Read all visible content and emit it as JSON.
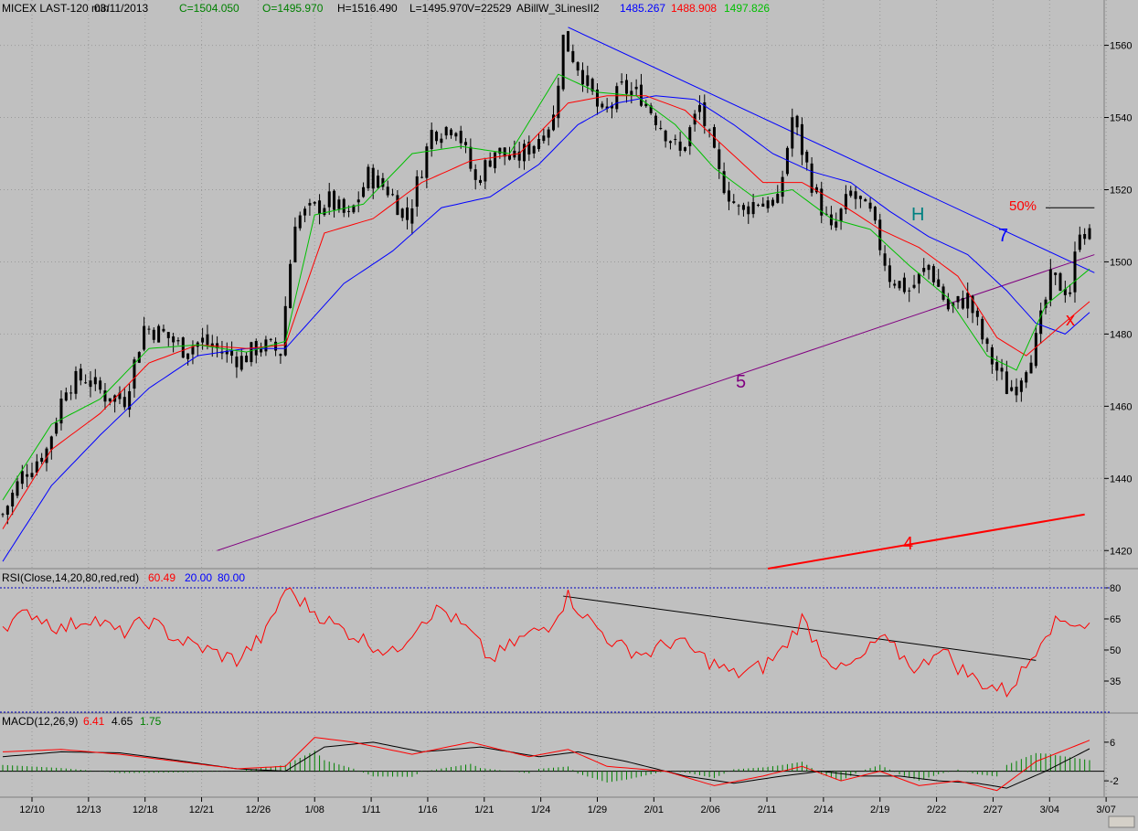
{
  "header": {
    "symbol": "MICEX LAST-120 min",
    "date": "03/11/2013",
    "close": "C=1504.050",
    "open": "O=1495.970",
    "high": "H=1516.490",
    "low": "L=1495.970",
    "volume": "V=22529",
    "indicator": "ABillW_3LinesII2",
    "ind_blue": "1485.267",
    "ind_red": "1488.908",
    "ind_green": "1497.826"
  },
  "rsi": {
    "title": "RSI(Close,14,20,80,red,red)",
    "value": "60.49",
    "low_text": "20.00",
    "high_text": "80.00",
    "ticks": [
      "80",
      "65",
      "50",
      "35"
    ]
  },
  "macd": {
    "title": "MACD(12,26,9)",
    "macd_text": "6.41",
    "signal_text": "4.65",
    "hist_text": "1.75",
    "ticks": [
      "6",
      "-2"
    ]
  },
  "annotations": {
    "label_5": "5",
    "label_7": "7",
    "label_4": "4",
    "label_H": "H",
    "label_x": "x",
    "label_50": "50%"
  },
  "colors": {
    "background": "#c0c0c0",
    "candle": "#000000",
    "ma_fast": "#00c000",
    "ma_mid": "#ff0000",
    "ma_slow": "#0000ff",
    "rsi": "#ff0000",
    "trend_7": "#0000ff",
    "trend_5": "#800080",
    "trend_4": "#ff0000",
    "trend_rsi": "#000000",
    "label_H": "#008080",
    "macd_hist": "#008000"
  },
  "chart_data": [
    {
      "type": "candlestick",
      "title": "MICEX LAST-120 min",
      "ylim": [
        1415,
        1568
      ],
      "yticks": [
        1420,
        1440,
        1460,
        1480,
        1500,
        1520,
        1540,
        1560
      ],
      "x_tick_labels": [
        "12/10",
        "12/13",
        "12/18",
        "12/21",
        "12/26",
        "1/08",
        "1/11",
        "1/16",
        "1/21",
        "1/24",
        "1/29",
        "2/01",
        "2/06",
        "2/11",
        "2/14",
        "2/19",
        "2/22",
        "2/27",
        "3/04",
        "3/07"
      ],
      "close_path": [
        [
          0,
          1430
        ],
        [
          4,
          1441
        ],
        [
          9,
          1448
        ],
        [
          13,
          1466
        ],
        [
          17,
          1468
        ],
        [
          21,
          1463
        ],
        [
          25,
          1462
        ],
        [
          29,
          1482
        ],
        [
          33,
          1480
        ],
        [
          37,
          1476
        ],
        [
          41,
          1478
        ],
        [
          45,
          1475
        ],
        [
          49,
          1473
        ],
        [
          53,
          1477
        ],
        [
          57,
          1475
        ],
        [
          58,
          1488
        ],
        [
          60,
          1512
        ],
        [
          63,
          1514
        ],
        [
          67,
          1517
        ],
        [
          71,
          1512
        ],
        [
          75,
          1524
        ],
        [
          79,
          1520
        ],
        [
          83,
          1512
        ],
        [
          88,
          1536
        ],
        [
          93,
          1538
        ],
        [
          97,
          1522
        ],
        [
          101,
          1531
        ],
        [
          105,
          1528
        ],
        [
          109,
          1533
        ],
        [
          113,
          1540
        ],
        [
          115,
          1562
        ],
        [
          119,
          1552
        ],
        [
          123,
          1540
        ],
        [
          127,
          1548
        ],
        [
          131,
          1546
        ],
        [
          135,
          1538
        ],
        [
          139,
          1530
        ],
        [
          143,
          1543
        ],
        [
          147,
          1524
        ],
        [
          151,
          1514
        ],
        [
          155,
          1517
        ],
        [
          159,
          1516
        ],
        [
          162,
          1540
        ],
        [
          166,
          1522
        ],
        [
          170,
          1508
        ],
        [
          174,
          1519
        ],
        [
          178,
          1513
        ],
        [
          182,
          1496
        ],
        [
          186,
          1492
        ],
        [
          190,
          1499
        ],
        [
          194,
          1487
        ],
        [
          198,
          1490
        ],
        [
          202,
          1475
        ],
        [
          206,
          1465
        ],
        [
          208,
          1466
        ],
        [
          212,
          1478
        ],
        [
          215,
          1495
        ],
        [
          219,
          1492
        ],
        [
          221,
          1510
        ],
        [
          223,
          1507
        ]
      ],
      "series": [
        {
          "name": "1485.267",
          "values": [
            [
              0,
              1417
            ],
            [
              10,
              1438
            ],
            [
              20,
              1452
            ],
            [
              30,
              1465
            ],
            [
              40,
              1474
            ],
            [
              50,
              1476
            ],
            [
              58,
              1476
            ],
            [
              70,
              1494
            ],
            [
              80,
              1503
            ],
            [
              90,
              1515
            ],
            [
              100,
              1518
            ],
            [
              110,
              1527
            ],
            [
              118,
              1538
            ],
            [
              126,
              1544
            ],
            [
              134,
              1546
            ],
            [
              142,
              1545
            ],
            [
              150,
              1538
            ],
            [
              158,
              1530
            ],
            [
              166,
              1525
            ],
            [
              174,
              1522
            ],
            [
              182,
              1514
            ],
            [
              190,
              1507
            ],
            [
              198,
              1502
            ],
            [
              206,
              1492
            ],
            [
              212,
              1483
            ],
            [
              218,
              1480
            ],
            [
              223,
              1486
            ]
          ]
        },
        {
          "name": "1488.908",
          "values": [
            [
              0,
              1426
            ],
            [
              10,
              1448
            ],
            [
              20,
              1458
            ],
            [
              30,
              1472
            ],
            [
              40,
              1477
            ],
            [
              50,
              1476
            ],
            [
              58,
              1477
            ],
            [
              66,
              1508
            ],
            [
              76,
              1512
            ],
            [
              86,
              1522
            ],
            [
              96,
              1528
            ],
            [
              106,
              1530
            ],
            [
              116,
              1544
            ],
            [
              124,
              1546
            ],
            [
              132,
              1546
            ],
            [
              140,
              1542
            ],
            [
              148,
              1532
            ],
            [
              156,
              1522
            ],
            [
              164,
              1522
            ],
            [
              172,
              1516
            ],
            [
              180,
              1509
            ],
            [
              188,
              1504
            ],
            [
              196,
              1496
            ],
            [
              204,
              1479
            ],
            [
              210,
              1474
            ],
            [
              216,
              1481
            ],
            [
              223,
              1489
            ]
          ]
        },
        {
          "name": "1497.826",
          "values": [
            [
              0,
              1434
            ],
            [
              10,
              1455
            ],
            [
              20,
              1462
            ],
            [
              30,
              1476
            ],
            [
              40,
              1477
            ],
            [
              50,
              1475
            ],
            [
              58,
              1478
            ],
            [
              64,
              1513
            ],
            [
              74,
              1516
            ],
            [
              84,
              1530
            ],
            [
              94,
              1532
            ],
            [
              104,
              1530
            ],
            [
              114,
              1552
            ],
            [
              122,
              1547
            ],
            [
              130,
              1546
            ],
            [
              138,
              1538
            ],
            [
              146,
              1526
            ],
            [
              154,
              1518
            ],
            [
              162,
              1520
            ],
            [
              170,
              1512
            ],
            [
              178,
              1509
            ],
            [
              186,
              1499
            ],
            [
              194,
              1490
            ],
            [
              202,
              1474
            ],
            [
              208,
              1470
            ],
            [
              214,
              1488
            ],
            [
              223,
              1498
            ]
          ]
        }
      ]
    },
    {
      "type": "line",
      "title": "RSI(Close,14,20,80,red,red)",
      "ylim": [
        20,
        80
      ],
      "yticks": [
        35,
        50,
        65,
        80
      ],
      "series": [
        {
          "name": "60.49",
          "values": [
            [
              0,
              62
            ],
            [
              6,
              68
            ],
            [
              12,
              60
            ],
            [
              18,
              66
            ],
            [
              24,
              58
            ],
            [
              30,
              64
            ],
            [
              36,
              55
            ],
            [
              42,
              50
            ],
            [
              48,
              45
            ],
            [
              54,
              58
            ],
            [
              58,
              80
            ],
            [
              62,
              72
            ],
            [
              68,
              62
            ],
            [
              74,
              55
            ],
            [
              80,
              48
            ],
            [
              86,
              65
            ],
            [
              90,
              70
            ],
            [
              96,
              58
            ],
            [
              100,
              45
            ],
            [
              106,
              55
            ],
            [
              112,
              62
            ],
            [
              116,
              76
            ],
            [
              120,
              65
            ],
            [
              126,
              52
            ],
            [
              132,
              48
            ],
            [
              138,
              55
            ],
            [
              144,
              46
            ],
            [
              150,
              38
            ],
            [
              156,
              42
            ],
            [
              160,
              50
            ],
            [
              164,
              65
            ],
            [
              168,
              50
            ],
            [
              172,
              40
            ],
            [
              176,
              45
            ],
            [
              180,
              56
            ],
            [
              184,
              48
            ],
            [
              188,
              40
            ],
            [
              192,
              52
            ],
            [
              196,
              42
            ],
            [
              200,
              35
            ],
            [
              206,
              30
            ],
            [
              210,
              42
            ],
            [
              214,
              60
            ],
            [
              218,
              65
            ],
            [
              222,
              62
            ]
          ]
        }
      ]
    },
    {
      "type": "line",
      "title": "MACD(12,26,9)",
      "ylim": [
        -5,
        9
      ],
      "yticks": [
        -2,
        6
      ],
      "series": [
        {
          "name": "6.41",
          "values": [
            [
              0,
              4
            ],
            [
              12,
              4.5
            ],
            [
              24,
              3.5
            ],
            [
              36,
              2
            ],
            [
              48,
              0.5
            ],
            [
              58,
              1
            ],
            [
              64,
              7
            ],
            [
              72,
              6
            ],
            [
              84,
              3.5
            ],
            [
              96,
              6
            ],
            [
              108,
              3
            ],
            [
              116,
              4.5
            ],
            [
              124,
              1
            ],
            [
              136,
              0
            ],
            [
              146,
              -3
            ],
            [
              156,
              -1
            ],
            [
              164,
              1
            ],
            [
              172,
              -2
            ],
            [
              180,
              0
            ],
            [
              188,
              -3
            ],
            [
              196,
              -2
            ],
            [
              204,
              -4
            ],
            [
              212,
              2
            ],
            [
              223,
              6.4
            ]
          ]
        },
        {
          "name": "4.65",
          "values": [
            [
              0,
              3
            ],
            [
              12,
              4
            ],
            [
              24,
              3.8
            ],
            [
              36,
              2.2
            ],
            [
              48,
              0.5
            ],
            [
              58,
              0
            ],
            [
              66,
              5
            ],
            [
              76,
              6
            ],
            [
              86,
              4
            ],
            [
              98,
              5
            ],
            [
              110,
              3
            ],
            [
              118,
              4
            ],
            [
              128,
              2
            ],
            [
              140,
              -1
            ],
            [
              150,
              -2.5
            ],
            [
              160,
              -1
            ],
            [
              168,
              0
            ],
            [
              176,
              -1
            ],
            [
              184,
              -1
            ],
            [
              192,
              -2
            ],
            [
              200,
              -2.5
            ],
            [
              206,
              -3.5
            ],
            [
              214,
              0
            ],
            [
              223,
              4.65
            ]
          ]
        }
      ]
    }
  ]
}
